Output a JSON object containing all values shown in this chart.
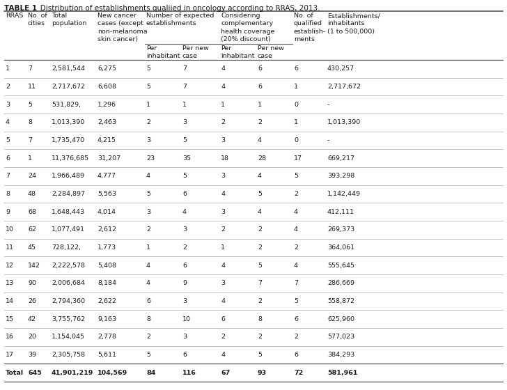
{
  "title_bold": "TABLE 1",
  "title_rest": "   Distribution of establishments qualiied in oncology according to RRAS, 2013.",
  "rows": [
    [
      "1",
      "7",
      "2,581,544",
      "6,275",
      "5",
      "7",
      "4",
      "6",
      "6",
      "430,257"
    ],
    [
      "2",
      "11",
      "2,717,672",
      "6,608",
      "5",
      "7",
      "4",
      "6",
      "1",
      "2,717,672"
    ],
    [
      "3",
      "5",
      "531,829,",
      "1,296",
      "1",
      "1",
      "1",
      "1",
      "0",
      "-"
    ],
    [
      "4",
      "8",
      "1,013,390",
      "2,463",
      "2",
      "3",
      "2",
      "2",
      "1",
      "1,013,390"
    ],
    [
      "5",
      "7",
      "1,735,470",
      "4,215",
      "3",
      "5",
      "3",
      "4",
      "0",
      "-"
    ],
    [
      "6",
      "1",
      "11,376,685",
      "31,207",
      "23",
      "35",
      "18",
      "28",
      "17",
      "669,217"
    ],
    [
      "7",
      "24",
      "1,966,489",
      "4,777",
      "4",
      "5",
      "3",
      "4",
      "5",
      "393,298"
    ],
    [
      "8",
      "48",
      "2,284,897",
      "5,563",
      "5",
      "6",
      "4",
      "5",
      "2",
      "1,142,449"
    ],
    [
      "9",
      "68",
      "1,648,443",
      "4,014",
      "3",
      "4",
      "3",
      "4",
      "4",
      "412,111"
    ],
    [
      "10",
      "62",
      "1,077,491",
      "2,612",
      "2",
      "3",
      "2",
      "2",
      "4",
      "269,373"
    ],
    [
      "11",
      "45",
      "728,122,",
      "1,773",
      "1",
      "2",
      "1",
      "2",
      "2",
      "364,061"
    ],
    [
      "12",
      "142",
      "2,222,578",
      "5,408",
      "4",
      "6",
      "4",
      "5",
      "4",
      "555,645"
    ],
    [
      "13",
      "90",
      "2,006,684",
      "8,184",
      "4",
      "9",
      "3",
      "7",
      "7",
      "286,669"
    ],
    [
      "14",
      "26",
      "2,794,360",
      "2,622",
      "6",
      "3",
      "4",
      "2",
      "5",
      "558,872"
    ],
    [
      "15",
      "42",
      "3,755,762",
      "9,163",
      "8",
      "10",
      "6",
      "8",
      "6",
      "625,960"
    ],
    [
      "16",
      "20",
      "1,154,045",
      "2,778",
      "2",
      "3",
      "2",
      "2",
      "2",
      "577,023"
    ],
    [
      "17",
      "39",
      "2,305,758",
      "5,611",
      "5",
      "6",
      "4",
      "5",
      "6",
      "384,293"
    ],
    [
      "Total",
      "645",
      "41,901,219",
      "104,569",
      "84",
      "116",
      "67",
      "93",
      "72",
      "581,961"
    ]
  ],
  "col_lefts": [
    6,
    38,
    72,
    138,
    208,
    260,
    315,
    368,
    420,
    468,
    560
  ],
  "background_color": "#ffffff",
  "text_color": "#1a1a1a",
  "line_color": "#aaaaaa",
  "thick_line_color": "#555555",
  "fs_header": 6.8,
  "fs_data": 6.8,
  "fs_title": 7.5
}
